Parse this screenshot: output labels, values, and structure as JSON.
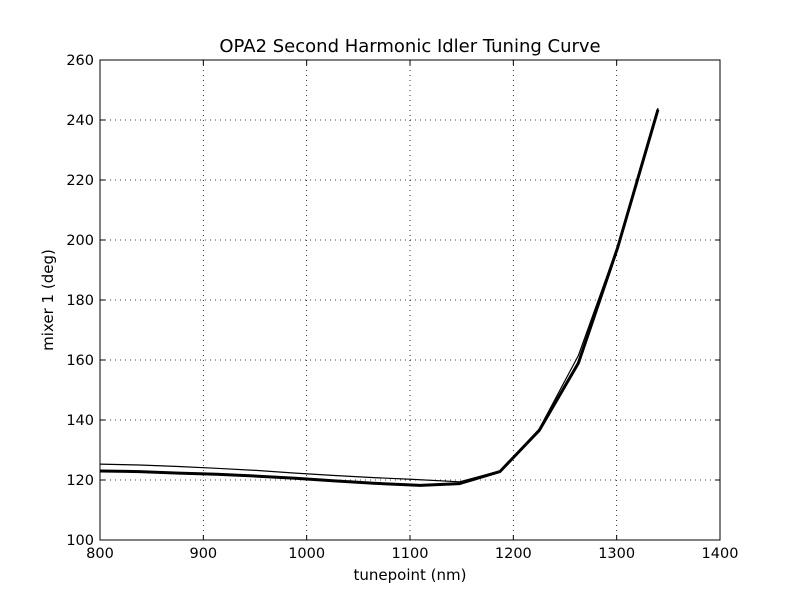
{
  "chart_data": {
    "type": "line",
    "title": "OPA2 Second Harmonic Idler Tuning Curve",
    "xlabel": "tunepoint (nm)",
    "ylabel": "mixer 1 (deg)",
    "xlim": [
      800,
      1400
    ],
    "ylim": [
      100,
      260
    ],
    "xticks": [
      800,
      900,
      1000,
      1100,
      1200,
      1300,
      1400
    ],
    "yticks": [
      100,
      120,
      140,
      160,
      180,
      200,
      220,
      240,
      260
    ],
    "grid": true,
    "legend": "none",
    "series": [
      {
        "color": "#000000",
        "weight": "thin",
        "x": [
          800,
          838,
          876,
          913,
          951,
          989,
          1027,
          1065,
          1103,
          1148,
          1187,
          1225,
          1263,
          1301,
          1340
        ],
        "y": [
          125.3,
          125.0,
          124.5,
          123.9,
          123.2,
          122.3,
          121.5,
          120.8,
          120.2,
          119.4,
          123.0,
          137.0,
          161.5,
          198.0,
          244.0
        ]
      },
      {
        "color": "#000000",
        "weight": "thick",
        "x": [
          800,
          838,
          876,
          913,
          951,
          989,
          1027,
          1065,
          1110,
          1148,
          1187,
          1225,
          1263,
          1301,
          1340
        ],
        "y": [
          123.0,
          122.8,
          122.3,
          121.9,
          121.3,
          120.6,
          119.7,
          118.9,
          118.2,
          118.8,
          122.8,
          136.5,
          159.0,
          197.5,
          243.5
        ]
      }
    ]
  }
}
